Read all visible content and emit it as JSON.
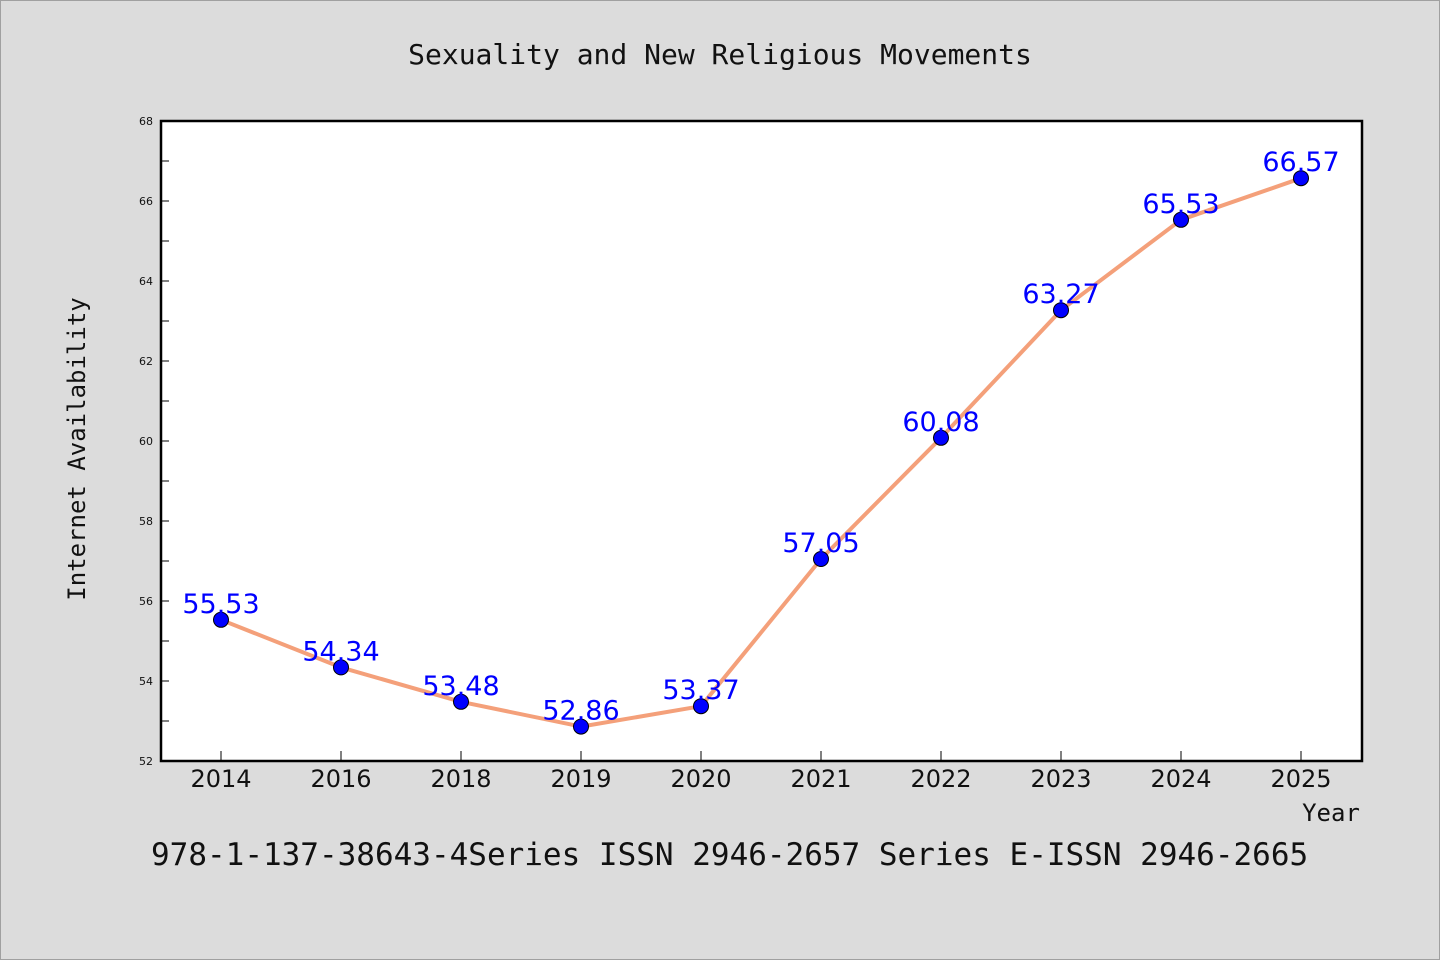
{
  "chart_data": {
    "type": "line",
    "title": "Sexuality and New Religious Movements",
    "xlabel": "Year",
    "ylabel": "Internet Availability",
    "categories": [
      "2014",
      "2016",
      "2018",
      "2019",
      "2020",
      "2021",
      "2022",
      "2023",
      "2024",
      "2025"
    ],
    "series": [
      {
        "values": [
          55.53,
          54.34,
          53.48,
          52.86,
          53.37,
          57.05,
          60.08,
          63.27,
          65.53,
          66.57
        ]
      }
    ],
    "data_labels": [
      "55.53",
      "54.34",
      "53.48",
      "52.86",
      "53.37",
      "57.05",
      "60.08",
      "63.27",
      "65.53",
      "66.57"
    ],
    "ylim": [
      52,
      68
    ],
    "y_ticks": [
      "52",
      "54",
      "56",
      "58",
      "60",
      "62",
      "64",
      "66",
      "68"
    ],
    "grid": false,
    "line_color": "#f4a07a",
    "marker_color": "#0000ff",
    "label_color": "#0000ff"
  },
  "footer": {
    "text": "978-1-137-38643-4Series ISSN 2946-2657 Series E-ISSN 2946-2665"
  }
}
